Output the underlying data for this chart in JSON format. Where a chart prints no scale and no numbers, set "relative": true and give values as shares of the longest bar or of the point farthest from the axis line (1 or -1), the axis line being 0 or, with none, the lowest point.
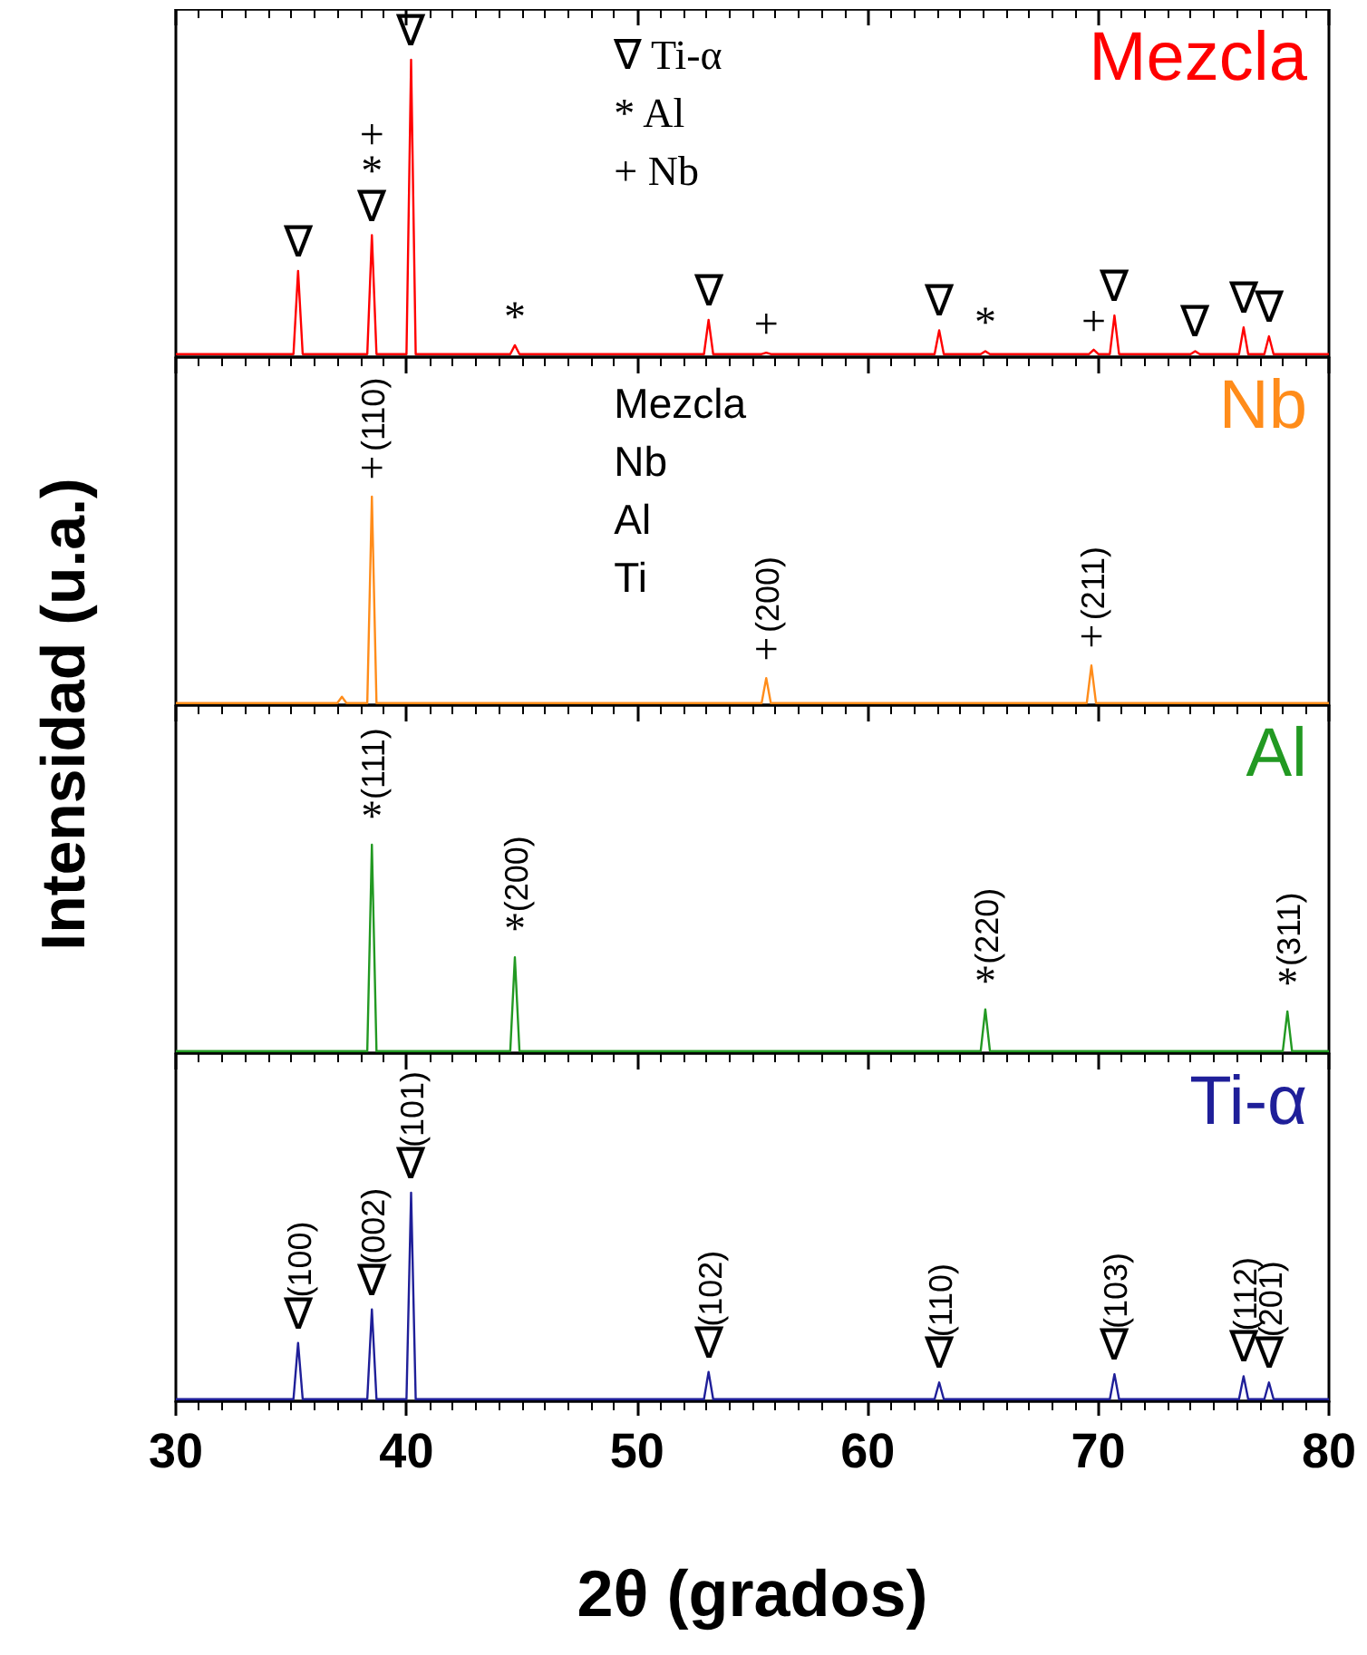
{
  "chart_data": [
    {
      "type": "line",
      "relative": true,
      "ylabel": "Intensidad (u.a.)",
      "xlim": [
        30,
        80
      ],
      "xticks": [
        30,
        40,
        50,
        60,
        70,
        80
      ],
      "tick_labels": false,
      "series": [
        {
          "name": "Mezcla",
          "color": "#ff0000",
          "x": [
            30,
            35.1,
            35.3,
            35.5,
            38.3,
            38.5,
            38.7,
            40.0,
            40.2,
            40.4,
            44.5,
            44.7,
            44.9,
            52.9,
            53.1,
            53.3,
            55.4,
            55.6,
            55.8,
            62.9,
            63.1,
            63.3,
            64.9,
            65.1,
            65.3,
            69.6,
            69.8,
            70.0,
            70.5,
            70.7,
            70.9,
            74.0,
            74.2,
            74.4,
            76.1,
            76.3,
            76.5,
            77.2,
            77.4,
            77.6,
            80
          ],
          "values": [
            0.01,
            0.01,
            0.29,
            0.01,
            0.01,
            0.41,
            0.01,
            0.01,
            1,
            0.01,
            0.01,
            0.04,
            0.01,
            0.01,
            0.125,
            0.01,
            0.01,
            0.015,
            0.01,
            0.01,
            0.09,
            0.01,
            0.01,
            0.02,
            0.01,
            0.01,
            0.025,
            0.01,
            0.01,
            0.14,
            0.01,
            0.01,
            0.02,
            0.01,
            0.01,
            0.1,
            0.01,
            0.01,
            0.07,
            0.01,
            0.01
          ]
        }
      ],
      "annotations": [
        "∇ Ti-α",
        "* Al",
        "+ Nb",
        {
          "text": "∇",
          "x": 35.3,
          "y": 0.29
        },
        {
          "text": "∇",
          "x": 38.5,
          "y": 0.41
        },
        {
          "text": "*",
          "x": 38.5,
          "y": 0.41
        },
        {
          "text": "+",
          "x": 38.5,
          "y": 0.41
        },
        {
          "text": "∇",
          "x": 40.2,
          "y": 1
        },
        {
          "text": "*",
          "x": 44.7,
          "y": 0.04
        },
        {
          "text": "∇",
          "x": 53.1,
          "y": 0.125
        },
        {
          "text": "+",
          "x": 55.6,
          "y": 0.015
        },
        {
          "text": "∇",
          "x": 63.1,
          "y": 0.09
        },
        {
          "text": "*",
          "x": 65.1,
          "y": 0.02
        },
        {
          "text": "+",
          "x": 69.8,
          "y": 0.025
        },
        {
          "text": "∇",
          "x": 70.7,
          "y": 0.14
        },
        {
          "text": "∇",
          "x": 74.2,
          "y": 0.02
        },
        {
          "text": "∇",
          "x": 76.3,
          "y": 0.1
        },
        {
          "text": "∇",
          "x": 77.4,
          "y": 0.07
        }
      ]
    },
    {
      "type": "line",
      "relative": true,
      "xlim": [
        30,
        80
      ],
      "xticks": [
        30,
        40,
        50,
        60,
        70,
        80
      ],
      "tick_labels": false,
      "series": [
        {
          "name": "Nb",
          "color": "#ff8c1a",
          "x": [
            30,
            37.0,
            37.2,
            37.4,
            38.3,
            38.5,
            38.7,
            55.4,
            55.6,
            55.8,
            69.5,
            69.7,
            69.9,
            80
          ],
          "values": [
            0.01,
            0.01,
            0.04,
            0.01,
            0.01,
            1,
            0.01,
            0.01,
            0.13,
            0.01,
            0.01,
            0.19,
            0.01,
            0.01
          ]
        }
      ],
      "annotations": [
        "Mezcla",
        "Nb",
        "Al",
        "Ti",
        {
          "text": "+",
          "x": 38.5,
          "y": 1
        },
        {
          "text": "(110)",
          "x": 38.5,
          "y": 1
        },
        {
          "text": "+",
          "x": 55.6,
          "y": 0.13
        },
        {
          "text": "(200)",
          "x": 55.6,
          "y": 0.13
        },
        {
          "text": "+",
          "x": 69.7,
          "y": 0.19
        },
        {
          "text": "(211)",
          "x": 69.7,
          "y": 0.19
        }
      ]
    },
    {
      "type": "line",
      "relative": true,
      "xlim": [
        30,
        80
      ],
      "xticks": [
        30,
        40,
        50,
        60,
        70,
        80
      ],
      "tick_labels": false,
      "series": [
        {
          "name": "Al",
          "color": "#229922",
          "x": [
            30,
            38.3,
            38.5,
            38.7,
            44.5,
            44.7,
            44.9,
            64.9,
            65.1,
            65.3,
            78.0,
            78.2,
            78.4,
            80
          ],
          "values": [
            0.01,
            0.01,
            1,
            0.01,
            0.01,
            0.46,
            0.01,
            0.01,
            0.21,
            0.01,
            0.01,
            0.2,
            0.01,
            0.01
          ]
        }
      ],
      "annotations": [
        {
          "text": "*",
          "x": 38.5,
          "y": 1
        },
        {
          "text": "(111)",
          "x": 38.5,
          "y": 1
        },
        {
          "text": "*",
          "x": 44.7,
          "y": 0.46
        },
        {
          "text": "(200)",
          "x": 44.7,
          "y": 0.46
        },
        {
          "text": "*",
          "x": 65.1,
          "y": 0.21
        },
        {
          "text": "(220)",
          "x": 65.1,
          "y": 0.21
        },
        {
          "text": "*",
          "x": 78.2,
          "y": 0.2
        },
        {
          "text": "(311)",
          "x": 78.2,
          "y": 0.2
        }
      ]
    },
    {
      "type": "line",
      "relative": true,
      "xlabel": "2θ (grados)",
      "xlim": [
        30,
        80
      ],
      "xticks": [
        30,
        40,
        50,
        60,
        70,
        80
      ],
      "tick_labels": "x",
      "series": [
        {
          "name": "Ti-α",
          "color": "#1f1f99",
          "x": [
            30,
            35.1,
            35.3,
            35.5,
            38.3,
            38.5,
            38.7,
            40.0,
            40.2,
            40.4,
            52.9,
            53.1,
            53.3,
            62.9,
            63.1,
            63.3,
            70.5,
            70.7,
            70.9,
            76.1,
            76.3,
            76.5,
            77.2,
            77.4,
            77.6,
            80
          ],
          "values": [
            0.01,
            0.01,
            0.28,
            0.01,
            0.01,
            0.44,
            0.01,
            0.01,
            1,
            0.01,
            0.01,
            0.14,
            0.01,
            0.01,
            0.09,
            0.01,
            0.01,
            0.13,
            0.01,
            0.01,
            0.12,
            0.01,
            0.01,
            0.09,
            0.01,
            0.01
          ]
        }
      ],
      "annotations": [
        {
          "text": "∇",
          "x": 35.3,
          "y": 0.28
        },
        {
          "text": "(100)",
          "x": 35.3,
          "y": 0.28
        },
        {
          "text": "∇",
          "x": 38.5,
          "y": 0.44
        },
        {
          "text": "(002)",
          "x": 38.5,
          "y": 0.44
        },
        {
          "text": "∇",
          "x": 40.2,
          "y": 1
        },
        {
          "text": "(101)",
          "x": 40.2,
          "y": 1
        },
        {
          "text": "∇",
          "x": 53.1,
          "y": 0.14
        },
        {
          "text": "(102)",
          "x": 53.1,
          "y": 0.14
        },
        {
          "text": "∇",
          "x": 63.1,
          "y": 0.09
        },
        {
          "text": "(110)",
          "x": 63.1,
          "y": 0.09
        },
        {
          "text": "∇",
          "x": 70.7,
          "y": 0.13
        },
        {
          "text": "(103)",
          "x": 70.7,
          "y": 0.13
        },
        {
          "text": "∇",
          "x": 76.3,
          "y": 0.12
        },
        {
          "text": "(112)",
          "x": 76.3,
          "y": 0.12
        },
        {
          "text": "∇",
          "x": 77.4,
          "y": 0.09
        },
        {
          "text": "(201)",
          "x": 77.4,
          "y": 0.09
        }
      ]
    }
  ]
}
